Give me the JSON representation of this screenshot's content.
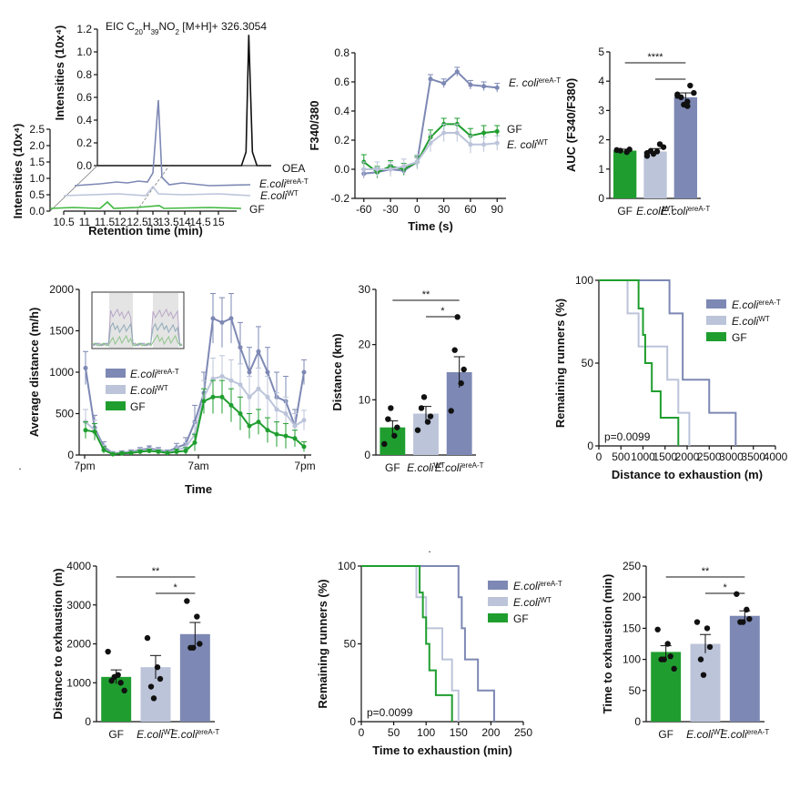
{
  "colors": {
    "gf": "#1f9e2f",
    "gf_light": "#41b840",
    "wt": "#bcc4da",
    "ere": "#7d88b4",
    "ere_label": "#2266cc",
    "oea": "#111111"
  },
  "chart_data": [
    {
      "id": "eic",
      "type": "line",
      "title": "EIC C20H39NO2 [M+H]+ 326.3054",
      "title_parts": {
        "a": "EIC C",
        "b": "20",
        "c": "H",
        "d": "39",
        "e": "NO",
        "f": "2",
        "g": " [M+H]+ 326.3054"
      },
      "ylabel_back": "Intensities (10x⁴)",
      "ylabel_front": "Intensities (10x⁴)",
      "xlabel": "Retention time (min)",
      "x_ticks": [
        "10.5",
        "11",
        "11.5",
        "12",
        "12.5",
        "13",
        "13.5",
        "14",
        "14.5",
        "15"
      ],
      "y_ticks_back": [
        "0.0",
        "0.2",
        "0.4",
        "0.6",
        "0.8",
        "1.0",
        "1.2"
      ],
      "y_ticks_front": [
        "0.0",
        "0.5",
        "1.0",
        "1.5",
        "2.0",
        "2.5"
      ],
      "traces": [
        {
          "name": "OEA",
          "peak_rt": 13.6,
          "peak": 1.15
        },
        {
          "name": "E.coli",
          "sup": "ereA-T",
          "peak_rt": 13.5,
          "peak": 0.55
        },
        {
          "name": "E.coli",
          "sup": "WT",
          "peak_rt": 13.5,
          "peak": 0.05
        },
        {
          "name": "GF",
          "peak_rt": 13.5,
          "peak": 0.05
        }
      ]
    },
    {
      "id": "calcium",
      "type": "line",
      "xlabel": "Time (s)",
      "ylabel": "F340/380",
      "xlim": [
        -70,
        100
      ],
      "ylim": [
        -0.2,
        0.8
      ],
      "x_ticks": [
        "-60",
        "-30",
        "0",
        "30",
        "60",
        "90"
      ],
      "y_ticks": [
        "-0.2",
        "0.0",
        "0.2",
        "0.4",
        "0.6",
        "0.8"
      ],
      "x": [
        -60,
        -45,
        -30,
        -15,
        0,
        15,
        30,
        45,
        60,
        75,
        90
      ],
      "series": [
        {
          "name": "E. coli",
          "sup": "ereA-T",
          "values": [
            -0.03,
            -0.02,
            0.0,
            -0.01,
            0.05,
            0.62,
            0.59,
            0.67,
            0.58,
            0.57,
            0.56
          ],
          "err": [
            0.03,
            0.03,
            0.03,
            0.03,
            0.03,
            0.03,
            0.03,
            0.03,
            0.03,
            0.03,
            0.03
          ]
        },
        {
          "name": "GF",
          "sup": "",
          "values": [
            0.05,
            -0.02,
            0.02,
            0.0,
            0.05,
            0.22,
            0.31,
            0.31,
            0.23,
            0.25,
            0.26
          ],
          "err": [
            0.05,
            0.04,
            0.04,
            0.04,
            0.04,
            0.05,
            0.04,
            0.04,
            0.05,
            0.05,
            0.04
          ]
        },
        {
          "name": "E. coli",
          "sup": "WT",
          "values": [
            0.0,
            0.0,
            0.0,
            0.02,
            0.05,
            0.18,
            0.25,
            0.25,
            0.17,
            0.17,
            0.18
          ],
          "err": [
            0.05,
            0.05,
            0.05,
            0.05,
            0.05,
            0.06,
            0.06,
            0.06,
            0.06,
            0.05,
            0.05
          ]
        }
      ]
    },
    {
      "id": "auc",
      "type": "bar",
      "ylabel": "AUC (F340/F380)",
      "ylim": [
        0,
        5
      ],
      "y_ticks": [
        "0",
        "1",
        "2",
        "3",
        "4",
        "5"
      ],
      "categories": [
        {
          "name": "GF",
          "sup": ""
        },
        {
          "name": "E.coli",
          "sup": "WT"
        },
        {
          "name": "E.coli",
          "sup": "ereA-T"
        }
      ],
      "values": [
        1.63,
        1.6,
        3.45
      ],
      "err": [
        0.05,
        0.1,
        0.15
      ],
      "points": [
        [
          1.65,
          1.58,
          1.67,
          1.63
        ],
        [
          1.45,
          1.6,
          1.85,
          1.62,
          1.52,
          1.75,
          1.55
        ],
        [
          3.55,
          3.3,
          3.85,
          3.45,
          3.2,
          3.6,
          3.5,
          3.15
        ]
      ],
      "significance": [
        {
          "from": 0,
          "to": 2,
          "label": "****"
        },
        {
          "from": 1,
          "to": 2,
          "label": ""
        }
      ]
    },
    {
      "id": "distance_time",
      "type": "line",
      "xlabel": "Time",
      "ylabel": "Average distance (m/h)",
      "ylim": [
        0,
        2000
      ],
      "y_ticks": [
        "0",
        "500",
        "1000",
        "1500",
        "2000"
      ],
      "x_ticks": [
        "7pm",
        "7am",
        "7pm"
      ],
      "x": [
        0,
        1,
        2,
        3,
        4,
        5,
        6,
        7,
        8,
        9,
        10,
        11,
        12,
        13,
        14,
        15,
        16,
        17,
        18,
        19,
        20,
        21,
        22,
        23,
        24
      ],
      "series": [
        {
          "name": "E.coli",
          "sup": "ereA-T",
          "values": [
            1050,
            330,
            100,
            20,
            30,
            40,
            60,
            80,
            60,
            40,
            90,
            130,
            400,
            750,
            1650,
            1600,
            1650,
            1300,
            1000,
            1250,
            1000,
            700,
            650,
            350,
            1000
          ],
          "err": [
            200,
            150,
            60,
            20,
            20,
            20,
            30,
            30,
            30,
            20,
            50,
            80,
            200,
            250,
            300,
            300,
            300,
            300,
            300,
            300,
            300,
            300,
            300,
            200,
            150
          ]
        },
        {
          "name": "E.coli",
          "sup": "WT",
          "values": [
            400,
            300,
            70,
            15,
            25,
            30,
            50,
            60,
            50,
            30,
            60,
            90,
            250,
            700,
            920,
            950,
            900,
            850,
            700,
            800,
            700,
            550,
            500,
            350,
            420
          ],
          "err": [
            150,
            120,
            50,
            15,
            15,
            15,
            25,
            25,
            25,
            15,
            40,
            60,
            150,
            200,
            250,
            250,
            250,
            250,
            250,
            250,
            250,
            200,
            200,
            150,
            120
          ]
        },
        {
          "name": "GF",
          "sup": "",
          "values": [
            300,
            280,
            60,
            10,
            20,
            25,
            40,
            50,
            40,
            25,
            40,
            50,
            150,
            650,
            700,
            700,
            600,
            500,
            350,
            400,
            300,
            250,
            230,
            200,
            100
          ],
          "err": [
            100,
            100,
            40,
            10,
            10,
            10,
            20,
            20,
            20,
            10,
            30,
            40,
            100,
            150,
            200,
            200,
            200,
            200,
            150,
            150,
            150,
            150,
            150,
            100,
            60
          ]
        }
      ]
    },
    {
      "id": "distance_km",
      "type": "bar",
      "ylabel": "Distance (km)",
      "ylim": [
        0,
        30
      ],
      "y_ticks": [
        "0",
        "10",
        "20",
        "30"
      ],
      "categories": [
        {
          "name": "GF",
          "sup": ""
        },
        {
          "name": "E.coli",
          "sup": "WT"
        },
        {
          "name": "E.coli",
          "sup": "ereA-T"
        }
      ],
      "values": [
        5.0,
        7.5,
        15.0
      ],
      "err": [
        1.2,
        1.3,
        2.8
      ],
      "points": [
        [
          2.0,
          3.5,
          5.0,
          6.5,
          8.5
        ],
        [
          4.5,
          6.0,
          7.0,
          8.5,
          10.5
        ],
        [
          8.0,
          13.0,
          15.5,
          19.0,
          25.0
        ]
      ],
      "significance": [
        {
          "from": 0,
          "to": 2,
          "label": "**"
        },
        {
          "from": 1,
          "to": 2,
          "label": "*"
        }
      ]
    },
    {
      "id": "km_distance",
      "type": "line",
      "xlabel": "Distance to exhaustion (m)",
      "ylabel": "Remaining runners (%)",
      "xlim": [
        0,
        4000
      ],
      "ylim": [
        0,
        100
      ],
      "x_ticks": [
        "0",
        "500",
        "1000",
        "1500",
        "2000",
        "2500",
        "3000",
        "3500",
        "4000"
      ],
      "y_ticks": [
        "0",
        "50",
        "100"
      ],
      "annotation": "p=0.0099",
      "series": [
        {
          "name": "E.coli",
          "sup": "ereA-T",
          "steps": [
            [
              0,
              100
            ],
            [
              1600,
              100
            ],
            [
              1600,
              80
            ],
            [
              1900,
              80
            ],
            [
              1900,
              40
            ],
            [
              2500,
              40
            ],
            [
              2500,
              20
            ],
            [
              3100,
              20
            ],
            [
              3100,
              0
            ]
          ]
        },
        {
          "name": "E.coli",
          "sup": "WT",
          "steps": [
            [
              0,
              100
            ],
            [
              650,
              100
            ],
            [
              650,
              80
            ],
            [
              900,
              80
            ],
            [
              900,
              60
            ],
            [
              1550,
              60
            ],
            [
              1550,
              40
            ],
            [
              1800,
              40
            ],
            [
              1800,
              20
            ],
            [
              2050,
              20
            ],
            [
              2050,
              0
            ]
          ]
        },
        {
          "name": "GF",
          "sup": "",
          "steps": [
            [
              0,
              100
            ],
            [
              900,
              100
            ],
            [
              900,
              83
            ],
            [
              1000,
              83
            ],
            [
              1000,
              67
            ],
            [
              1050,
              67
            ],
            [
              1050,
              50
            ],
            [
              1200,
              50
            ],
            [
              1200,
              33
            ],
            [
              1400,
              33
            ],
            [
              1400,
              17
            ],
            [
              1800,
              17
            ],
            [
              1800,
              0
            ]
          ]
        }
      ]
    },
    {
      "id": "dist_exhaustion",
      "type": "bar",
      "ylabel": "Distance to exhaustion (m)",
      "ylim": [
        0,
        4000
      ],
      "y_ticks": [
        "0",
        "1000",
        "2000",
        "3000",
        "4000"
      ],
      "categories": [
        {
          "name": "GF",
          "sup": ""
        },
        {
          "name": "E.coli",
          "sup": "WT"
        },
        {
          "name": "E.coli",
          "sup": "ereA-T"
        }
      ],
      "values": [
        1150,
        1400,
        2250
      ],
      "err": [
        180,
        300,
        300
      ],
      "points": [
        [
          1800,
          1200,
          1000,
          1050,
          1150,
          800
        ],
        [
          2150,
          1400,
          1100,
          900,
          600
        ],
        [
          3100,
          2700,
          2000,
          1900,
          1900
        ]
      ],
      "significance": [
        {
          "from": 0,
          "to": 2,
          "label": "**"
        },
        {
          "from": 1,
          "to": 2,
          "label": "*"
        }
      ]
    },
    {
      "id": "km_time",
      "type": "line",
      "xlabel": "Time to exhaustion (min)",
      "ylabel": "Remaining runners (%)",
      "xlim": [
        0,
        250
      ],
      "ylim": [
        0,
        100
      ],
      "x_ticks": [
        "0",
        "50",
        "100",
        "150",
        "200",
        "250"
      ],
      "y_ticks": [
        "0",
        "50",
        "100"
      ],
      "annotation": "p=0.0099",
      "series": [
        {
          "name": "E.coli",
          "sup": "ereA-T",
          "steps": [
            [
              0,
              100
            ],
            [
              150,
              100
            ],
            [
              150,
              80
            ],
            [
              155,
              80
            ],
            [
              155,
              60
            ],
            [
              160,
              60
            ],
            [
              160,
              40
            ],
            [
              180,
              40
            ],
            [
              180,
              20
            ],
            [
              205,
              20
            ],
            [
              205,
              0
            ]
          ]
        },
        {
          "name": "E.coli",
          "sup": "WT",
          "steps": [
            [
              0,
              100
            ],
            [
              85,
              100
            ],
            [
              85,
              80
            ],
            [
              100,
              80
            ],
            [
              100,
              60
            ],
            [
              125,
              60
            ],
            [
              125,
              40
            ],
            [
              140,
              40
            ],
            [
              140,
              20
            ],
            [
              150,
              20
            ],
            [
              150,
              0
            ]
          ]
        },
        {
          "name": "GF",
          "sup": "",
          "steps": [
            [
              0,
              100
            ],
            [
              90,
              100
            ],
            [
              90,
              83
            ],
            [
              95,
              83
            ],
            [
              95,
              67
            ],
            [
              100,
              67
            ],
            [
              100,
              50
            ],
            [
              105,
              50
            ],
            [
              105,
              33
            ],
            [
              115,
              33
            ],
            [
              115,
              17
            ],
            [
              140,
              17
            ],
            [
              140,
              0
            ]
          ]
        }
      ]
    },
    {
      "id": "time_exhaustion",
      "type": "bar",
      "ylabel": "Time to exhaustion (min)",
      "ylim": [
        0,
        250
      ],
      "y_ticks": [
        "0",
        "50",
        "100",
        "150",
        "200",
        "250"
      ],
      "categories": [
        {
          "name": "GF",
          "sup": ""
        },
        {
          "name": "E.coli",
          "sup": "WT"
        },
        {
          "name": "E.coli",
          "sup": "ereA-T"
        }
      ],
      "values": [
        112,
        125,
        170
      ],
      "err": [
        10,
        15,
        8
      ],
      "points": [
        [
          148,
          125,
          105,
          100,
          100,
          85
        ],
        [
          160,
          150,
          120,
          100,
          75
        ],
        [
          205,
          180,
          165,
          160,
          160
        ]
      ],
      "significance": [
        {
          "from": 0,
          "to": 2,
          "label": "**"
        },
        {
          "from": 1,
          "to": 2,
          "label": "*"
        }
      ]
    }
  ]
}
